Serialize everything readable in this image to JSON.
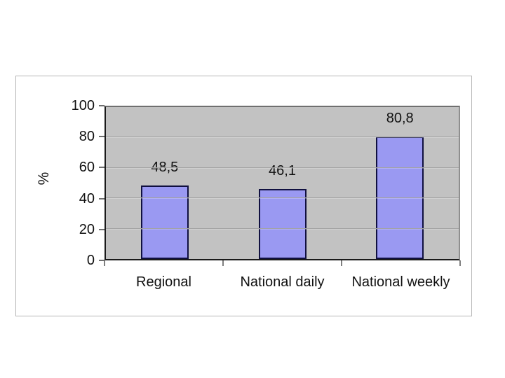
{
  "chart_data": {
    "type": "bar",
    "title": "",
    "ylabel": "%",
    "xlabel": "",
    "categories": [
      "Regional",
      "National daily",
      "National weekly"
    ],
    "values": [
      48.5,
      46.1,
      80.8
    ],
    "value_labels": [
      "48,5",
      "46,1",
      "80,8"
    ],
    "yticks": [
      0,
      20,
      40,
      60,
      80,
      100
    ],
    "ylim": [
      0,
      100
    ],
    "grid": "horizontal-major",
    "legend": "none",
    "colors": {
      "bar_fill": "#9A99F2",
      "bar_border": "#101040",
      "plot_bg": "#C2C2C2",
      "gridline": "#A3A3A3",
      "chart_border": "#B6B6B6",
      "text": "#111111"
    }
  }
}
